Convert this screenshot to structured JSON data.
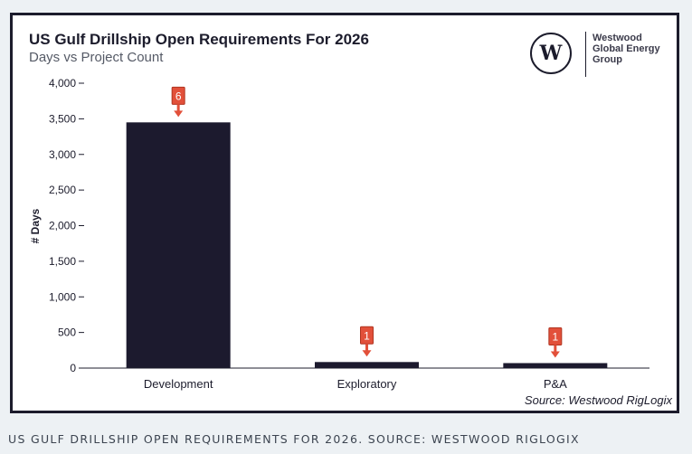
{
  "caption": "US GULF DRILLSHIP OPEN REQUIREMENTS FOR 2026. SOURCE: WESTWOOD RIGLOGIX",
  "logo": {
    "mark": "W",
    "lines": [
      "Westwood",
      "Global Energy",
      "Group"
    ]
  },
  "colors": {
    "bar": "#1c1a2e",
    "marker": "#e2503a",
    "frame": "#1c1c2c",
    "page_background": "#edf1f4"
  },
  "chart_data": {
    "type": "bar",
    "title": "US Gulf Drillship Open Requirements For 2026",
    "subtitle": "Days vs Project Count",
    "xlabel": "",
    "ylabel": "# Days",
    "categories": [
      "Development",
      "Exploratory",
      "P&A"
    ],
    "values": [
      3450,
      85,
      70
    ],
    "annotations": [
      6,
      1,
      1
    ],
    "ylim": [
      0,
      4000
    ],
    "yticks": [
      0,
      500,
      1000,
      1500,
      2000,
      2500,
      3000,
      3500,
      4000
    ],
    "ytick_labels": [
      "0",
      "500",
      "1,000",
      "1,500",
      "2,000",
      "2,500",
      "3,000",
      "3,500",
      "4,000"
    ],
    "grid": false,
    "legend": "none",
    "source": "Source: Westwood RigLogix"
  }
}
